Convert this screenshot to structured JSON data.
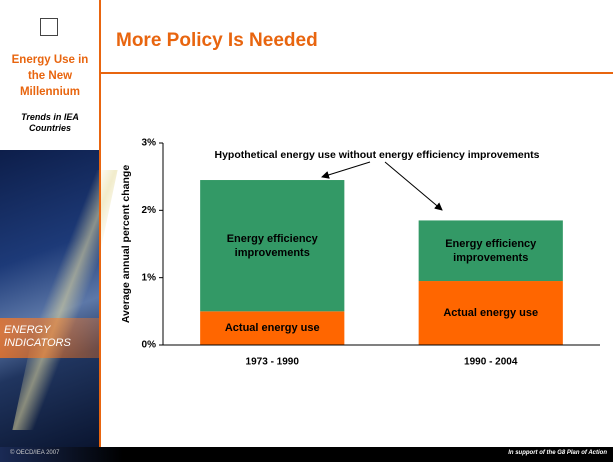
{
  "chart_data": {
    "type": "stacked_bar",
    "title": "More Policy Is Needed",
    "annotation": "Hypothetical energy use without energy efficiency improvements",
    "y_axis_label": "Average annual percent change",
    "categories": [
      "1973 - 1990",
      "1990 - 2004"
    ],
    "series": [
      {
        "name": "Actual energy use",
        "color": "#ff6600",
        "values": [
          0.5,
          0.95
        ]
      },
      {
        "name": "Energy efficiency improvements",
        "color": "#339966",
        "values": [
          1.95,
          0.9
        ]
      }
    ],
    "ylim": [
      0,
      3
    ],
    "yticks": [
      {
        "value": 0,
        "label": "0%"
      },
      {
        "value": 1,
        "label": "1%"
      },
      {
        "value": 2,
        "label": "2%"
      },
      {
        "value": 3,
        "label": "3%"
      }
    ],
    "grid": false
  },
  "sidebar": {
    "title": "Energy Use in the New Millennium",
    "subtitle": "Trends in IEA Countries",
    "label": "ENERGY INDICATORS"
  },
  "footer": {
    "left": "© OECD/IEA 2007",
    "right": "In support of the G8 Plan of Action"
  }
}
